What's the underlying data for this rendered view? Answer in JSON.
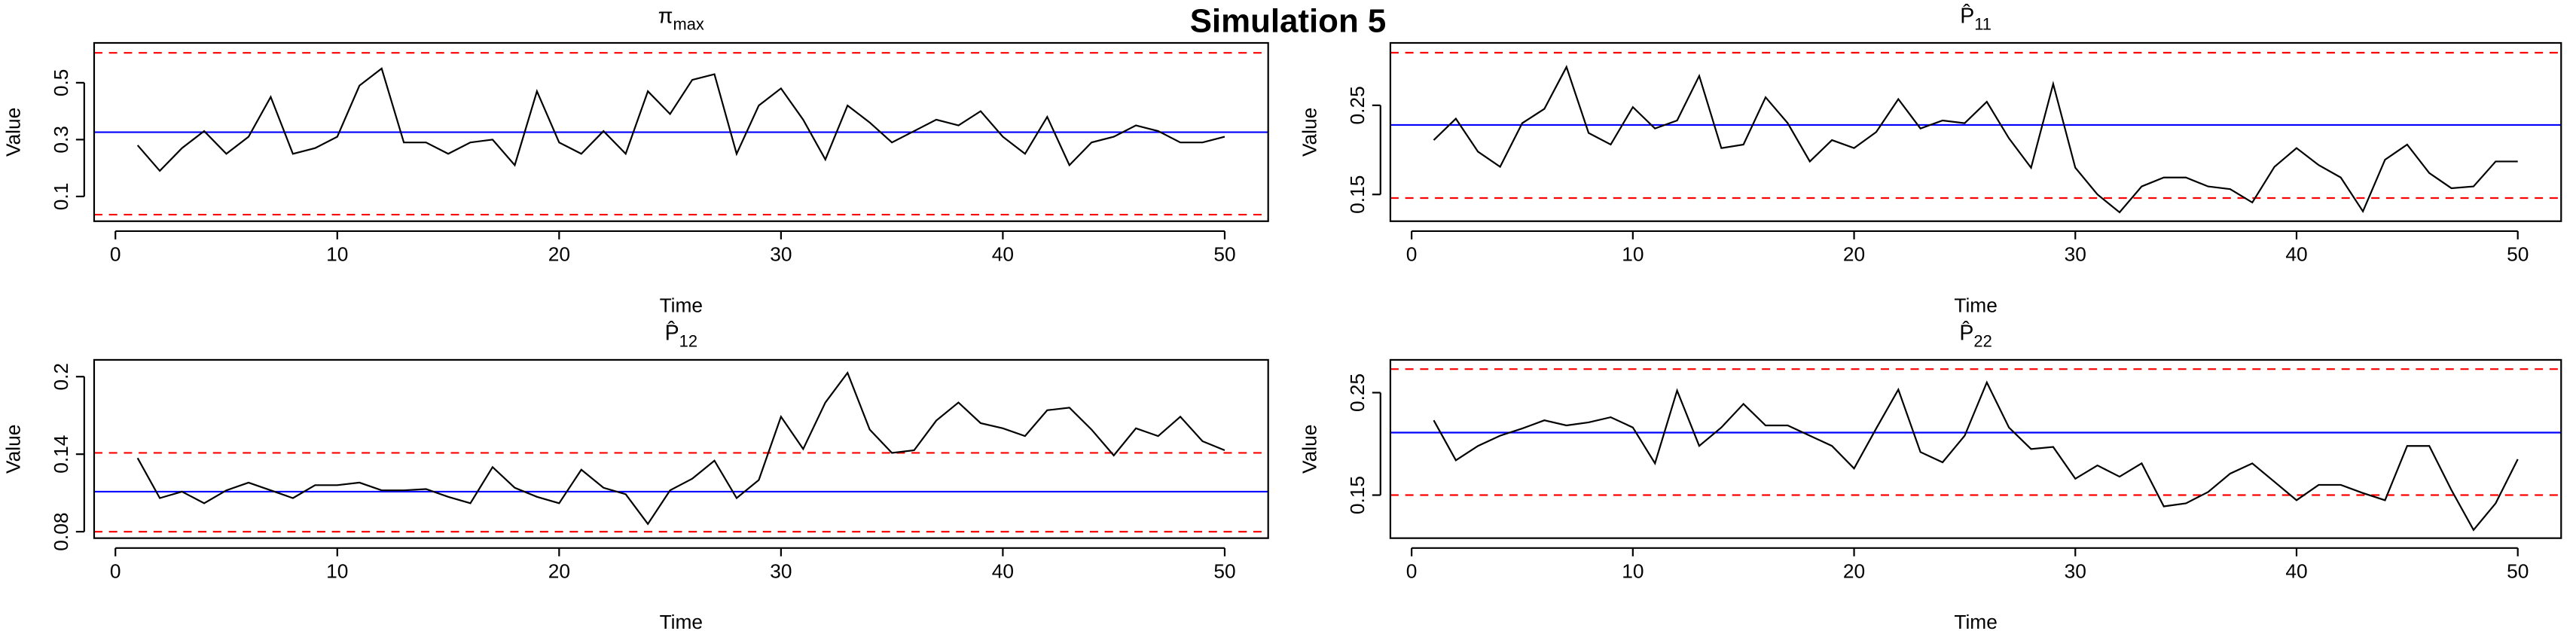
{
  "title": "Simulation 5",
  "chart_data": [
    {
      "type": "line",
      "title": "π",
      "title_subscript": "max",
      "x_label": "Time",
      "y_label": "Value",
      "x": [
        1,
        2,
        3,
        4,
        5,
        6,
        7,
        8,
        9,
        10,
        11,
        12,
        13,
        14,
        15,
        16,
        17,
        18,
        19,
        20,
        21,
        22,
        23,
        24,
        25,
        26,
        27,
        28,
        29,
        30,
        31,
        32,
        33,
        34,
        35,
        36,
        37,
        38,
        39,
        40,
        41,
        42,
        43,
        44,
        45,
        46,
        47,
        48,
        49,
        50
      ],
      "values": [
        0.28,
        0.19,
        0.27,
        0.33,
        0.25,
        0.31,
        0.45,
        0.25,
        0.27,
        0.31,
        0.49,
        0.55,
        0.29,
        0.29,
        0.25,
        0.29,
        0.3,
        0.21,
        0.47,
        0.29,
        0.25,
        0.33,
        0.25,
        0.47,
        0.39,
        0.51,
        0.53,
        0.25,
        0.42,
        0.48,
        0.37,
        0.23,
        0.42,
        0.36,
        0.29,
        0.33,
        0.37,
        0.35,
        0.4,
        0.31,
        0.25,
        0.38,
        0.21,
        0.29,
        0.31,
        0.35,
        0.33,
        0.29,
        0.29,
        0.31
      ],
      "color": "#000000",
      "reference_lines": [
        {
          "value": 0.326,
          "color": "#0000ff",
          "dashed": false
        },
        {
          "value": 0.605,
          "color": "#ff0000",
          "dashed": true
        },
        {
          "value": 0.036,
          "color": "#ff0000",
          "dashed": true
        }
      ],
      "xlim": [
        -0.96,
        51.96
      ],
      "xticks": [
        0,
        10,
        20,
        30,
        40,
        50
      ],
      "ylim": [
        0.013,
        0.64
      ],
      "yticks": [
        0.1,
        0.3,
        0.5
      ]
    },
    {
      "type": "line",
      "title": "P̂",
      "title_subscript": "11",
      "x_label": "Time",
      "y_label": "Value",
      "x": [
        1,
        2,
        3,
        4,
        5,
        6,
        7,
        8,
        9,
        10,
        11,
        12,
        13,
        14,
        15,
        16,
        17,
        18,
        19,
        20,
        21,
        22,
        23,
        24,
        25,
        26,
        27,
        28,
        29,
        30,
        31,
        32,
        33,
        34,
        35,
        36,
        37,
        38,
        39,
        40,
        41,
        42,
        43,
        44,
        45,
        46,
        47,
        48,
        49,
        50
      ],
      "values": [
        0.211,
        0.235,
        0.198,
        0.181,
        0.23,
        0.246,
        0.293,
        0.219,
        0.206,
        0.248,
        0.224,
        0.233,
        0.283,
        0.202,
        0.206,
        0.259,
        0.23,
        0.187,
        0.211,
        0.202,
        0.22,
        0.257,
        0.224,
        0.233,
        0.23,
        0.254,
        0.213,
        0.18,
        0.274,
        0.18,
        0.15,
        0.13,
        0.159,
        0.169,
        0.169,
        0.159,
        0.156,
        0.141,
        0.181,
        0.202,
        0.183,
        0.169,
        0.131,
        0.189,
        0.206,
        0.174,
        0.157,
        0.159,
        0.187,
        0.187
      ],
      "color": "#000000",
      "reference_lines": [
        {
          "value": 0.228,
          "color": "#0000ff",
          "dashed": false
        },
        {
          "value": 0.309,
          "color": "#ff0000",
          "dashed": true
        },
        {
          "value": 0.146,
          "color": "#ff0000",
          "dashed": true
        }
      ],
      "xlim": [
        -0.96,
        51.96
      ],
      "xticks": [
        0,
        10,
        20,
        30,
        40,
        50
      ],
      "ylim": [
        0.12,
        0.32
      ],
      "yticks": [
        0.15,
        0.25
      ]
    },
    {
      "type": "line",
      "title": "P̂",
      "title_subscript": "12",
      "x_label": "Time",
      "y_label": "Value",
      "x": [
        1,
        2,
        3,
        4,
        5,
        6,
        7,
        8,
        9,
        10,
        11,
        12,
        13,
        14,
        15,
        16,
        17,
        18,
        19,
        20,
        21,
        22,
        23,
        24,
        25,
        26,
        27,
        28,
        29,
        30,
        31,
        32,
        33,
        34,
        35,
        36,
        37,
        38,
        39,
        40,
        41,
        42,
        43,
        44,
        45,
        46,
        47,
        48,
        49,
        50
      ],
      "values": [
        0.137,
        0.106,
        0.111,
        0.102,
        0.112,
        0.118,
        0.112,
        0.106,
        0.116,
        0.116,
        0.118,
        0.112,
        0.112,
        0.113,
        0.107,
        0.102,
        0.13,
        0.114,
        0.107,
        0.102,
        0.128,
        0.114,
        0.109,
        0.086,
        0.112,
        0.121,
        0.135,
        0.106,
        0.12,
        0.169,
        0.144,
        0.18,
        0.203,
        0.159,
        0.141,
        0.143,
        0.166,
        0.18,
        0.164,
        0.16,
        0.154,
        0.174,
        0.176,
        0.159,
        0.139,
        0.16,
        0.154,
        0.169,
        0.15,
        0.143
      ],
      "color": "#000000",
      "reference_lines": [
        {
          "value": 0.111,
          "color": "#0000ff",
          "dashed": false
        },
        {
          "value": 0.141,
          "color": "#ff0000",
          "dashed": true
        },
        {
          "value": 0.08,
          "color": "#ff0000",
          "dashed": true
        }
      ],
      "xlim": [
        -0.96,
        51.96
      ],
      "xticks": [
        0,
        10,
        20,
        30,
        40,
        50
      ],
      "ylim": [
        0.075,
        0.213
      ],
      "yticks": [
        0.08,
        0.14,
        0.2
      ]
    },
    {
      "type": "line",
      "title": "P̂",
      "title_subscript": "22",
      "x_label": "Time",
      "y_label": "Value",
      "x": [
        1,
        2,
        3,
        4,
        5,
        6,
        7,
        8,
        9,
        10,
        11,
        12,
        13,
        14,
        15,
        16,
        17,
        18,
        19,
        20,
        21,
        22,
        23,
        24,
        25,
        26,
        27,
        28,
        29,
        30,
        31,
        32,
        33,
        34,
        35,
        36,
        37,
        38,
        39,
        40,
        41,
        42,
        43,
        44,
        45,
        46,
        47,
        48,
        49,
        50
      ],
      "values": [
        0.223,
        0.184,
        0.198,
        0.208,
        0.215,
        0.223,
        0.218,
        0.221,
        0.226,
        0.216,
        0.181,
        0.252,
        0.198,
        0.216,
        0.239,
        0.218,
        0.218,
        0.208,
        0.198,
        0.176,
        0.215,
        0.253,
        0.192,
        0.182,
        0.208,
        0.26,
        0.216,
        0.195,
        0.197,
        0.166,
        0.179,
        0.168,
        0.181,
        0.139,
        0.142,
        0.153,
        0.171,
        0.181,
        0.163,
        0.145,
        0.16,
        0.16,
        0.152,
        0.145,
        0.198,
        0.198,
        0.155,
        0.116,
        0.142,
        0.185
      ],
      "color": "#000000",
      "reference_lines": [
        {
          "value": 0.211,
          "color": "#0000ff",
          "dashed": false
        },
        {
          "value": 0.273,
          "color": "#ff0000",
          "dashed": true
        },
        {
          "value": 0.15,
          "color": "#ff0000",
          "dashed": true
        }
      ],
      "xlim": [
        -0.96,
        51.96
      ],
      "xticks": [
        0,
        10,
        20,
        30,
        40,
        50
      ],
      "ylim": [
        0.108,
        0.282
      ],
      "yticks": [
        0.15,
        0.25
      ]
    }
  ]
}
